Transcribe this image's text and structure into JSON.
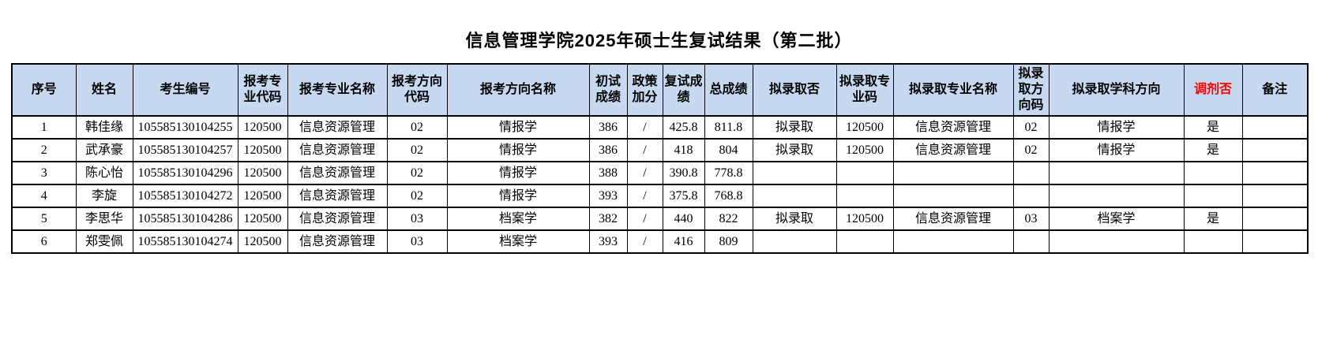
{
  "page": {
    "title": "信息管理学院2025年硕士生复试结果（第二批）"
  },
  "colors": {
    "header_bg": "#c6d9f0",
    "header_highlight_text": "#ff0000",
    "border": "#000000"
  },
  "table": {
    "headers": [
      {
        "label": "序号"
      },
      {
        "label": "姓名"
      },
      {
        "label": "考生编号"
      },
      {
        "label": "报考专业代码"
      },
      {
        "label": "报考专业名称"
      },
      {
        "label": "报考方向代码"
      },
      {
        "label": "报考方向名称"
      },
      {
        "label": "初试成绩"
      },
      {
        "label": "政策加分"
      },
      {
        "label": "复试成绩"
      },
      {
        "label": "总成绩"
      },
      {
        "label": "拟录取否"
      },
      {
        "label": "拟录取专业码"
      },
      {
        "label": "拟录取专业名称"
      },
      {
        "label": "拟录取方向码"
      },
      {
        "label": "拟录取学科方向"
      },
      {
        "label": "调剂否",
        "color": "#ff0000"
      },
      {
        "label": "备注"
      }
    ],
    "rows": [
      [
        "1",
        "韩佳缘",
        "105585130104255",
        "120500",
        "信息资源管理",
        "02",
        "情报学",
        "386",
        "/",
        "425.8",
        "811.8",
        "拟录取",
        "120500",
        "信息资源管理",
        "02",
        "情报学",
        "是",
        ""
      ],
      [
        "2",
        "武承豪",
        "105585130104257",
        "120500",
        "信息资源管理",
        "02",
        "情报学",
        "386",
        "/",
        "418",
        "804",
        "拟录取",
        "120500",
        "信息资源管理",
        "02",
        "情报学",
        "是",
        ""
      ],
      [
        "3",
        "陈心怡",
        "105585130104296",
        "120500",
        "信息资源管理",
        "02",
        "情报学",
        "388",
        "/",
        "390.8",
        "778.8",
        "",
        "",
        "",
        "",
        "",
        "",
        ""
      ],
      [
        "4",
        "李旋",
        "105585130104272",
        "120500",
        "信息资源管理",
        "02",
        "情报学",
        "393",
        "/",
        "375.8",
        "768.8",
        "",
        "",
        "",
        "",
        "",
        "",
        ""
      ],
      [
        "5",
        "李思华",
        "105585130104286",
        "120500",
        "信息资源管理",
        "03",
        "档案学",
        "382",
        "/",
        "440",
        "822",
        "拟录取",
        "120500",
        "信息资源管理",
        "03",
        "档案学",
        "是",
        ""
      ],
      [
        "6",
        "郑雯佩",
        "105585130104274",
        "120500",
        "信息资源管理",
        "03",
        "档案学",
        "393",
        "/",
        "416",
        "809",
        "",
        "",
        "",
        "",
        "",
        "",
        ""
      ]
    ]
  }
}
